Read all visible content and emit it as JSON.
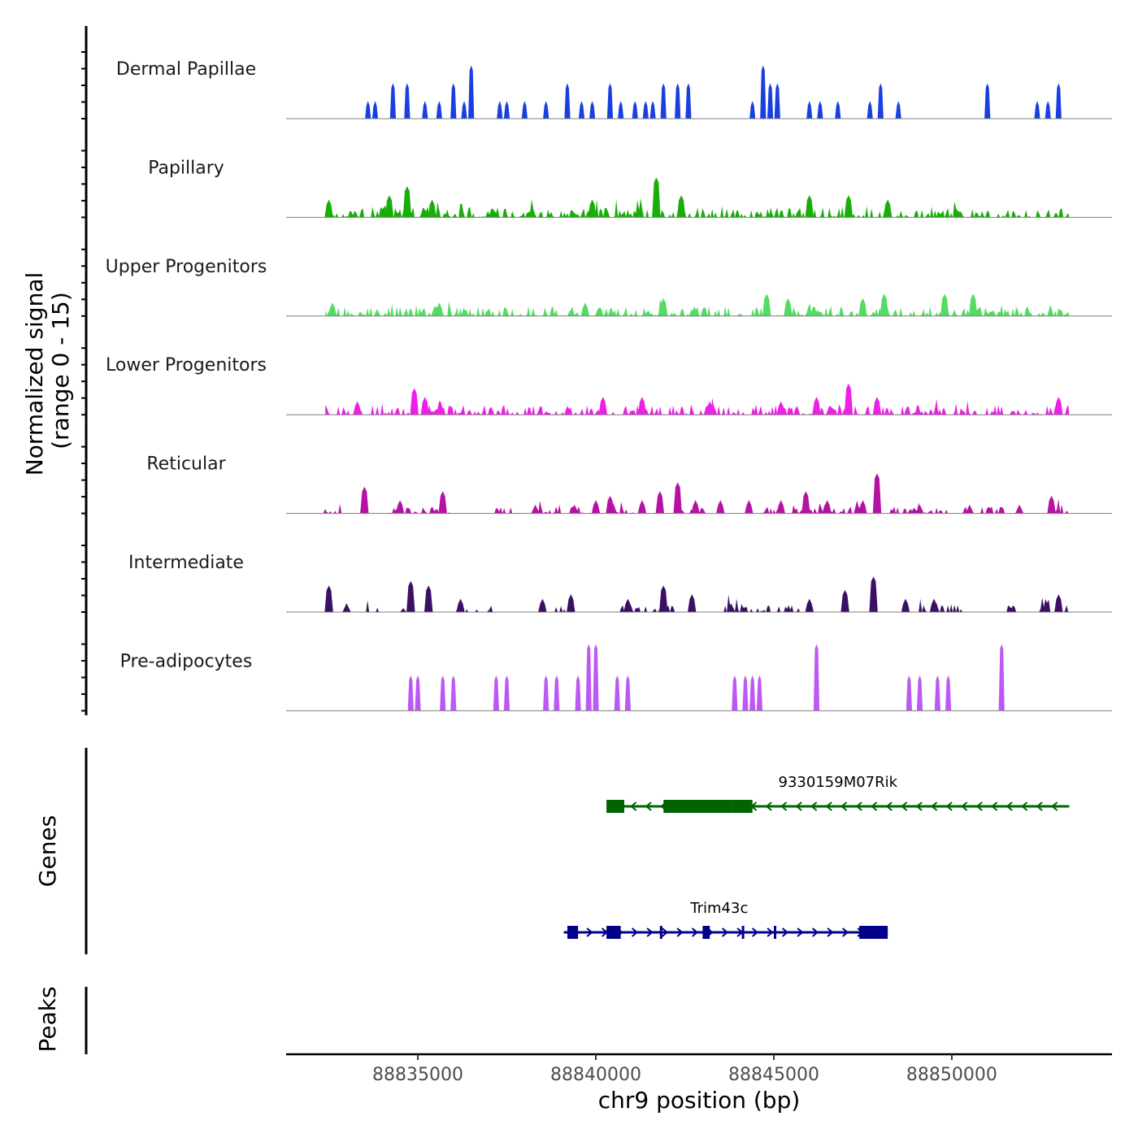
{
  "chart_data": {
    "type": "area",
    "title": "",
    "chromosome": "chr9",
    "xlabel": "chr9 position (bp)",
    "ylabel_line1": "Normalized signal",
    "ylabel_line2": "(range 0 - 15)",
    "xlim": [
      88831300,
      88854500
    ],
    "ylim": [
      0,
      15
    ],
    "x_ticks": [
      88835000,
      88840000,
      88845000,
      88850000
    ],
    "x_tick_labels": [
      "88835000",
      "88840000",
      "88845000",
      "88850000"
    ],
    "tracks": [
      {
        "name": "Dermal Papillae",
        "color": "#1a3fe0",
        "profile": "sparse",
        "seed": 11,
        "range": [
          88833500,
          88852300
        ],
        "peaks": [
          {
            "x": 88833600,
            "h": 4
          },
          {
            "x": 88833800,
            "h": 4
          },
          {
            "x": 88834300,
            "h": 8
          },
          {
            "x": 88834700,
            "h": 8
          },
          {
            "x": 88835200,
            "h": 4
          },
          {
            "x": 88835600,
            "h": 4
          },
          {
            "x": 88836000,
            "h": 8
          },
          {
            "x": 88836300,
            "h": 4
          },
          {
            "x": 88836500,
            "h": 12
          },
          {
            "x": 88837300,
            "h": 4
          },
          {
            "x": 88837500,
            "h": 4
          },
          {
            "x": 88838000,
            "h": 4
          },
          {
            "x": 88838600,
            "h": 4
          },
          {
            "x": 88839200,
            "h": 8
          },
          {
            "x": 88839600,
            "h": 4
          },
          {
            "x": 88839900,
            "h": 4
          },
          {
            "x": 88840400,
            "h": 8
          },
          {
            "x": 88840700,
            "h": 4
          },
          {
            "x": 88841100,
            "h": 4
          },
          {
            "x": 88841400,
            "h": 4
          },
          {
            "x": 88841600,
            "h": 4
          },
          {
            "x": 88841900,
            "h": 8
          },
          {
            "x": 88842300,
            "h": 8
          },
          {
            "x": 88842600,
            "h": 8
          },
          {
            "x": 88844400,
            "h": 4
          },
          {
            "x": 88844700,
            "h": 12
          },
          {
            "x": 88844900,
            "h": 8
          },
          {
            "x": 88845100,
            "h": 8
          },
          {
            "x": 88846000,
            "h": 4
          },
          {
            "x": 88846300,
            "h": 4
          },
          {
            "x": 88846800,
            "h": 4
          },
          {
            "x": 88847700,
            "h": 4
          },
          {
            "x": 88848000,
            "h": 8
          },
          {
            "x": 88848500,
            "h": 4
          },
          {
            "x": 88851000,
            "h": 8
          },
          {
            "x": 88852400,
            "h": 4
          },
          {
            "x": 88852700,
            "h": 4
          },
          {
            "x": 88853000,
            "h": 8
          }
        ]
      },
      {
        "name": "Papillary",
        "color": "#19ad0a",
        "profile": "dense",
        "seed": 23,
        "range": [
          88832400,
          88853300
        ],
        "peaks": [
          {
            "x": 88832500,
            "h": 4
          },
          {
            "x": 88834200,
            "h": 5
          },
          {
            "x": 88834700,
            "h": 7
          },
          {
            "x": 88835400,
            "h": 4
          },
          {
            "x": 88839900,
            "h": 4
          },
          {
            "x": 88841700,
            "h": 9
          },
          {
            "x": 88842400,
            "h": 5
          },
          {
            "x": 88846000,
            "h": 5
          },
          {
            "x": 88847100,
            "h": 5
          },
          {
            "x": 88848200,
            "h": 4
          }
        ]
      },
      {
        "name": "Upper Progenitors",
        "color": "#52dc62",
        "profile": "dense",
        "seed": 37,
        "range": [
          88832400,
          88853300
        ],
        "peaks": [
          {
            "x": 88832600,
            "h": 3
          },
          {
            "x": 88835600,
            "h": 3
          },
          {
            "x": 88839700,
            "h": 3
          },
          {
            "x": 88841900,
            "h": 4
          },
          {
            "x": 88844800,
            "h": 5
          },
          {
            "x": 88845400,
            "h": 4
          },
          {
            "x": 88847500,
            "h": 4
          },
          {
            "x": 88848100,
            "h": 5
          },
          {
            "x": 88849800,
            "h": 5
          },
          {
            "x": 88850600,
            "h": 5
          }
        ]
      },
      {
        "name": "Lower Progenitors",
        "color": "#ee1fe6",
        "profile": "dense",
        "seed": 41,
        "range": [
          88832400,
          88853300
        ],
        "peaks": [
          {
            "x": 88833300,
            "h": 3
          },
          {
            "x": 88834900,
            "h": 6
          },
          {
            "x": 88835200,
            "h": 4
          },
          {
            "x": 88840200,
            "h": 4
          },
          {
            "x": 88841300,
            "h": 4
          },
          {
            "x": 88843200,
            "h": 3
          },
          {
            "x": 88845200,
            "h": 3
          },
          {
            "x": 88846200,
            "h": 4
          },
          {
            "x": 88847100,
            "h": 7
          },
          {
            "x": 88847900,
            "h": 4
          },
          {
            "x": 88853000,
            "h": 4
          }
        ]
      },
      {
        "name": "Reticular",
        "color": "#b512a4",
        "profile": "patchy",
        "seed": 53,
        "range": [
          88832400,
          88853300
        ],
        "peaks": [
          {
            "x": 88832400,
            "h": 1
          },
          {
            "x": 88833500,
            "h": 6
          },
          {
            "x": 88834500,
            "h": 3
          },
          {
            "x": 88835700,
            "h": 5
          },
          {
            "x": 88838300,
            "h": 2
          },
          {
            "x": 88839400,
            "h": 2
          },
          {
            "x": 88840000,
            "h": 3
          },
          {
            "x": 88840400,
            "h": 4
          },
          {
            "x": 88841300,
            "h": 3
          },
          {
            "x": 88841800,
            "h": 5
          },
          {
            "x": 88842300,
            "h": 7
          },
          {
            "x": 88842800,
            "h": 3
          },
          {
            "x": 88843500,
            "h": 3
          },
          {
            "x": 88844300,
            "h": 3
          },
          {
            "x": 88845200,
            "h": 3
          },
          {
            "x": 88845900,
            "h": 5
          },
          {
            "x": 88846500,
            "h": 3
          },
          {
            "x": 88847500,
            "h": 3
          },
          {
            "x": 88847900,
            "h": 9
          },
          {
            "x": 88849100,
            "h": 2
          },
          {
            "x": 88850500,
            "h": 2
          },
          {
            "x": 88851900,
            "h": 2
          },
          {
            "x": 88852800,
            "h": 4
          }
        ]
      },
      {
        "name": "Intermediate",
        "color": "#3b0f63",
        "profile": "patchy",
        "seed": 67,
        "range": [
          88832400,
          88853300
        ],
        "peaks": [
          {
            "x": 88832500,
            "h": 6
          },
          {
            "x": 88833000,
            "h": 2
          },
          {
            "x": 88834800,
            "h": 7
          },
          {
            "x": 88835300,
            "h": 6
          },
          {
            "x": 88836200,
            "h": 3
          },
          {
            "x": 88838500,
            "h": 3
          },
          {
            "x": 88839300,
            "h": 4
          },
          {
            "x": 88840900,
            "h": 3
          },
          {
            "x": 88841900,
            "h": 6
          },
          {
            "x": 88842700,
            "h": 4
          },
          {
            "x": 88843800,
            "h": 2
          },
          {
            "x": 88846000,
            "h": 3
          },
          {
            "x": 88847000,
            "h": 5
          },
          {
            "x": 88847800,
            "h": 8
          },
          {
            "x": 88848700,
            "h": 3
          },
          {
            "x": 88849500,
            "h": 3
          },
          {
            "x": 88853000,
            "h": 4
          }
        ]
      },
      {
        "name": "Pre-adipocytes",
        "color": "#bc59f4",
        "profile": "sparse",
        "seed": 79,
        "range": [
          88834500,
          88852000
        ],
        "peaks": [
          {
            "x": 88834800,
            "h": 8
          },
          {
            "x": 88835000,
            "h": 8
          },
          {
            "x": 88835700,
            "h": 8
          },
          {
            "x": 88836000,
            "h": 8
          },
          {
            "x": 88837200,
            "h": 8
          },
          {
            "x": 88837500,
            "h": 8
          },
          {
            "x": 88838600,
            "h": 8
          },
          {
            "x": 88838900,
            "h": 8
          },
          {
            "x": 88839500,
            "h": 8
          },
          {
            "x": 88839800,
            "h": 15
          },
          {
            "x": 88840000,
            "h": 15
          },
          {
            "x": 88840600,
            "h": 8
          },
          {
            "x": 88840900,
            "h": 8
          },
          {
            "x": 88843900,
            "h": 8
          },
          {
            "x": 88844200,
            "h": 8
          },
          {
            "x": 88844400,
            "h": 8
          },
          {
            "x": 88844600,
            "h": 8
          },
          {
            "x": 88846200,
            "h": 15
          },
          {
            "x": 88848800,
            "h": 8
          },
          {
            "x": 88849100,
            "h": 8
          },
          {
            "x": 88849600,
            "h": 8
          },
          {
            "x": 88849900,
            "h": 8
          },
          {
            "x": 88851400,
            "h": 15
          }
        ]
      }
    ],
    "genes_panel_label": "Genes",
    "genes": [
      {
        "name": "9330159M07Rik",
        "strand": "-",
        "color": "#006400",
        "start": 88840300,
        "end": 88853300,
        "exons": [
          [
            88840300,
            88840800
          ],
          [
            88841900,
            88843800
          ],
          [
            88843800,
            88844400
          ]
        ]
      },
      {
        "name": "Trim43c",
        "strand": "+",
        "color": "#00008b",
        "start": 88839100,
        "end": 88848200,
        "exons": [
          [
            88839200,
            88839500
          ],
          [
            88840300,
            88840700
          ],
          [
            88841800,
            88841850
          ],
          [
            88843000,
            88843200
          ],
          [
            88844100,
            88844130
          ],
          [
            88845000,
            88845050
          ],
          [
            88847400,
            88848200
          ]
        ]
      }
    ],
    "peaks_panel_label": "Peaks"
  }
}
